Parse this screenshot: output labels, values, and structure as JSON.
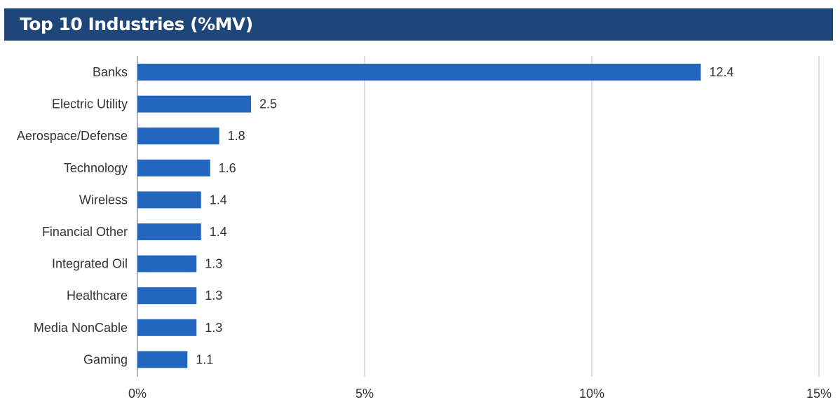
{
  "header": {
    "title": "Top 10 Industries (%MV)"
  },
  "colors": {
    "header_bg": "#1e4678",
    "bar": "#2266c0",
    "grid": "#d0d0d0",
    "axis": "#9a9a9a"
  },
  "chart_data": {
    "type": "bar",
    "orientation": "horizontal",
    "title": "Top 10 Industries (%MV)",
    "categories": [
      "Banks",
      "Electric Utility",
      "Aerospace/Defense",
      "Technology",
      "Wireless",
      "Financial Other",
      "Integrated Oil",
      "Healthcare",
      "Media NonCable",
      "Gaming"
    ],
    "values": [
      12.4,
      2.5,
      1.8,
      1.6,
      1.4,
      1.4,
      1.3,
      1.3,
      1.3,
      1.1
    ],
    "value_labels": [
      "12.4",
      "2.5",
      "1.8",
      "1.6",
      "1.4",
      "1.4",
      "1.3",
      "1.3",
      "1.3",
      "1.1"
    ],
    "xlim": [
      0,
      15
    ],
    "xticks": [
      0,
      5,
      10,
      15
    ],
    "xtick_labels": [
      "0%",
      "5%",
      "10%",
      "15%"
    ],
    "grid": true,
    "legend": "none"
  }
}
